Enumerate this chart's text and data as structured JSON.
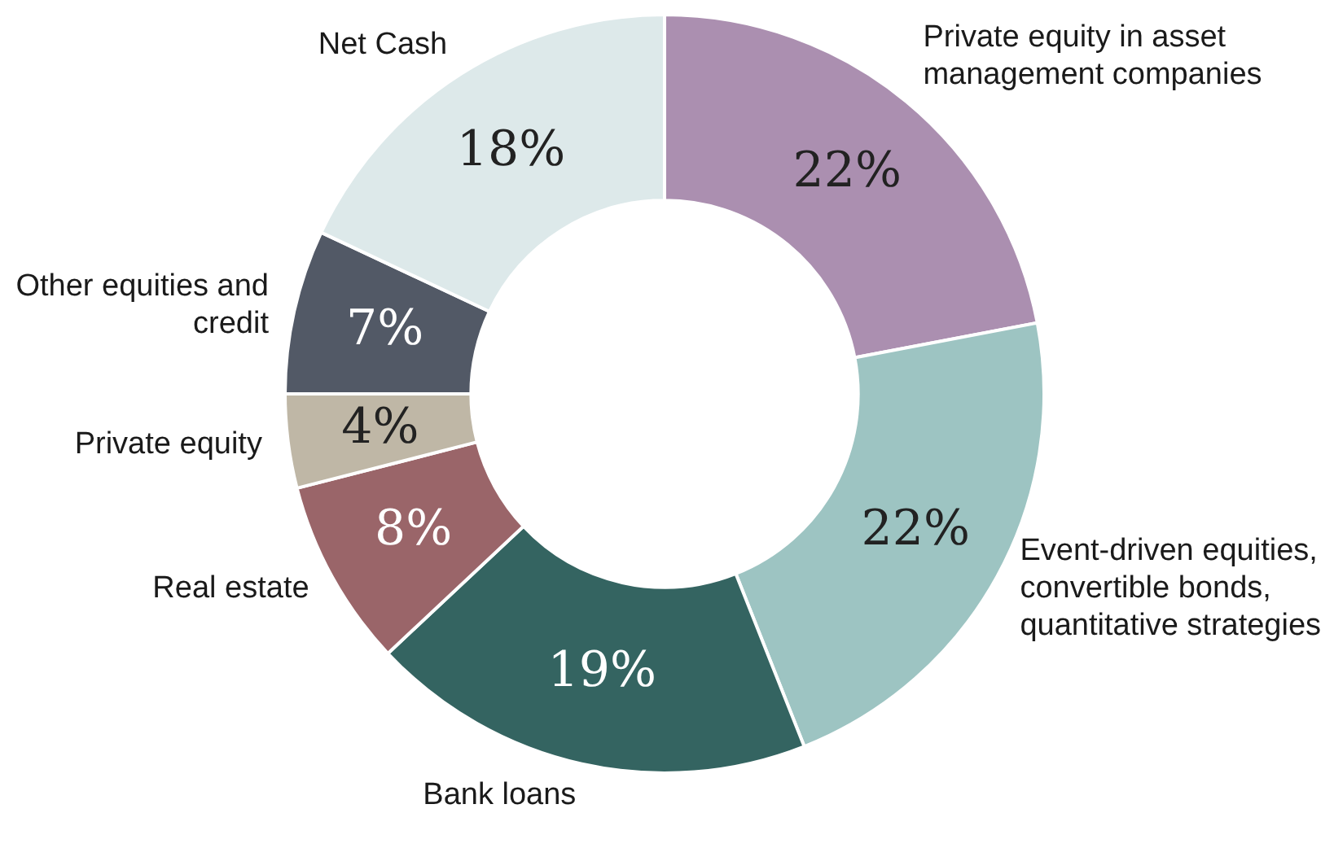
{
  "chart_data": {
    "type": "donut",
    "categories": [
      "Private equity in asset management companies",
      "Event-driven equities, convertible bonds, quantitative strategies",
      "Bank loans",
      "Real estate",
      "Private equity",
      "Other equities and credit",
      "Net Cash"
    ],
    "values": [
      22,
      22,
      19,
      8,
      4,
      7,
      18
    ],
    "colors": [
      "#ab8fb0",
      "#9dc4c2",
      "#346461",
      "#9a6569",
      "#bfb7a6",
      "#525966",
      "#dde9ea"
    ],
    "value_labels": [
      "22%",
      "22%",
      "19%",
      "8%",
      "4%",
      "7%",
      "18%"
    ],
    "legend": false
  }
}
